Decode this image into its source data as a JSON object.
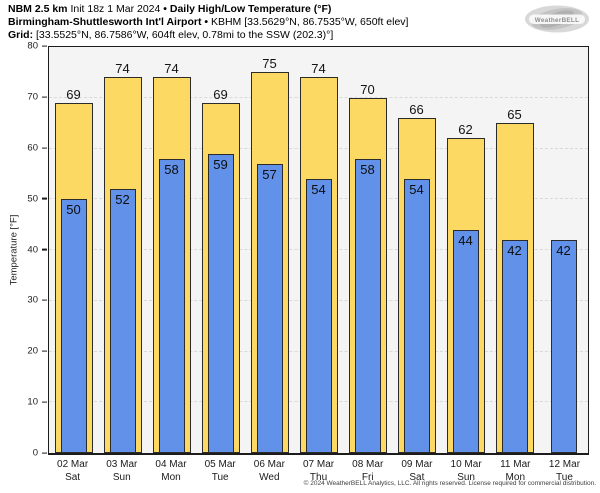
{
  "header": {
    "model": "NBM 2.5 km",
    "init": "Init 18z 1 Mar 2024",
    "bullet": "•",
    "product": "Daily High/Low Temperature (°F)",
    "station": "Birmingham-Shuttlesworth Int'l Airport",
    "station_details": "KBHM [33.5629°N, 86.7535°W, 650ft elev]",
    "grid_label": "Grid:",
    "grid_details": "[33.5525°N, 86.7586°W, 604ft elev, 0.78mi to the SSW (202.3)°]"
  },
  "logo": {
    "text": "WeatherBELL"
  },
  "footer": {
    "copyright": "© 2024 WeatherBELL Analytics, LLC. All rights reserved. License required for commercial distribution."
  },
  "chart_data": {
    "type": "bar",
    "title": "NBM 2.5 km Daily High/Low Temperature (°F) — Birmingham-Shuttlesworth Int'l Airport (KBHM)",
    "ylabel": "Temperature [°F]",
    "xlabel": "",
    "ylim": [
      0,
      80
    ],
    "yticks": [
      0,
      10,
      20,
      30,
      40,
      50,
      60,
      70,
      80
    ],
    "grid": true,
    "legend_position": "none",
    "categories": [
      {
        "date": "02 Mar",
        "day": "Sat"
      },
      {
        "date": "03 Mar",
        "day": "Sun"
      },
      {
        "date": "04 Mar",
        "day": "Mon"
      },
      {
        "date": "05 Mar",
        "day": "Tue"
      },
      {
        "date": "06 Mar",
        "day": "Wed"
      },
      {
        "date": "07 Mar",
        "day": "Thu"
      },
      {
        "date": "08 Mar",
        "day": "Fri"
      },
      {
        "date": "09 Mar",
        "day": "Sat"
      },
      {
        "date": "10 Mar",
        "day": "Sun"
      },
      {
        "date": "11 Mar",
        "day": "Mon"
      },
      {
        "date": "12 Mar",
        "day": "Tue"
      }
    ],
    "series": [
      {
        "name": "High",
        "color": "#fbd962",
        "values": [
          69,
          74,
          74,
          69,
          75,
          74,
          70,
          66,
          62,
          65,
          null
        ]
      },
      {
        "name": "Low",
        "color": "#6191e8",
        "values": [
          50,
          52,
          58,
          59,
          57,
          54,
          58,
          54,
          44,
          42,
          42
        ]
      }
    ],
    "colors": {
      "high_bar": "#fbd962",
      "low_bar": "#6191e8",
      "bar_border": "#2b2b2b",
      "plot_background": "#f4f4f4",
      "gridline": "#d9d9d9",
      "frame": "#1c1c1c"
    }
  }
}
